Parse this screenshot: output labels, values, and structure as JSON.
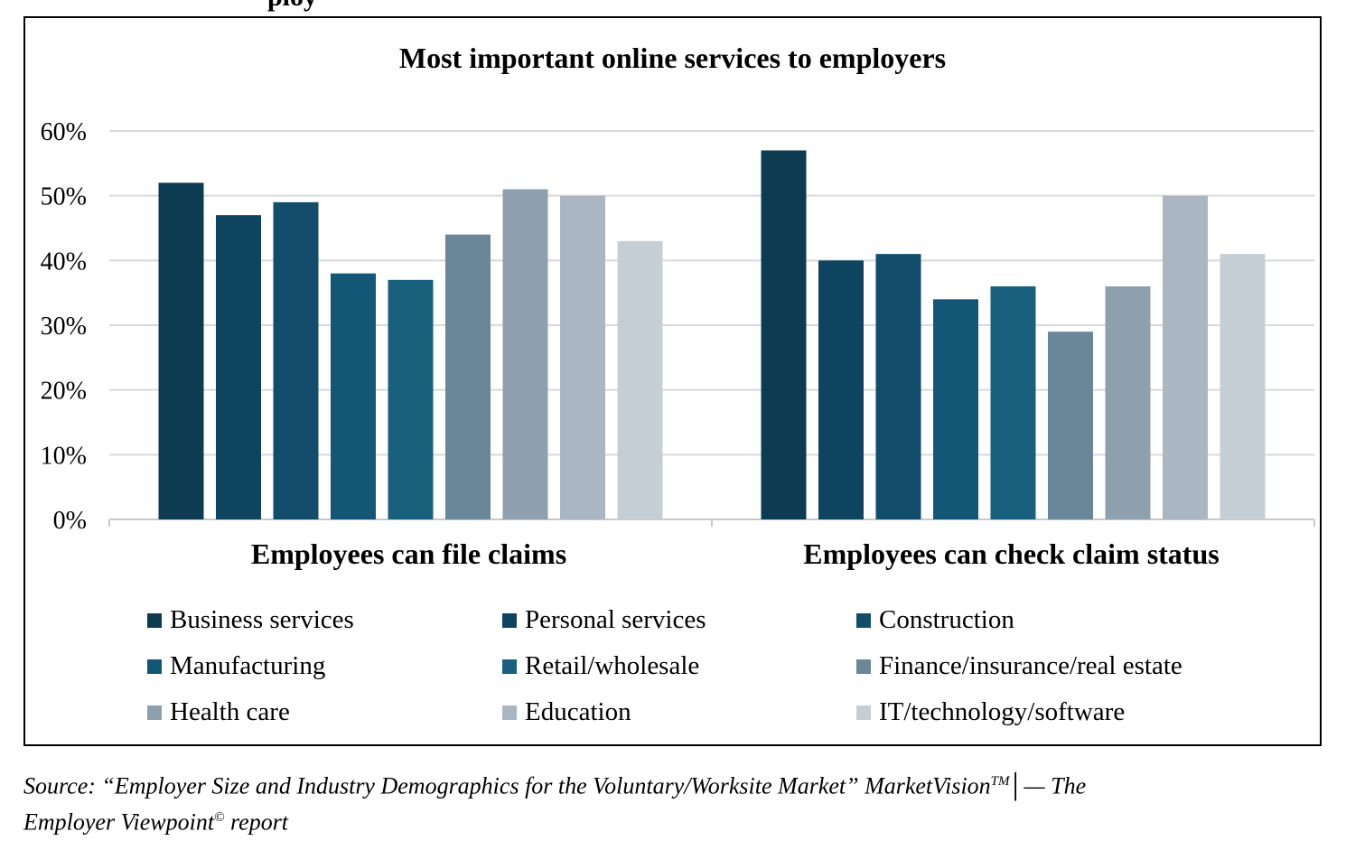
{
  "header_fragment": "ploy",
  "chart_data": {
    "type": "bar",
    "title": "Most important online services to employers",
    "categories": [
      "Employees can file claims",
      "Employees can check claim status"
    ],
    "ylim": [
      0,
      60
    ],
    "yticks": [
      "0%",
      "10%",
      "20%",
      "30%",
      "40%",
      "50%",
      "60%"
    ],
    "grid": true,
    "legend_position": "bottom",
    "series": [
      {
        "name": "Business services",
        "values": [
          52,
          57
        ],
        "color": "#0d3b52"
      },
      {
        "name": "Personal services",
        "values": [
          47,
          40
        ],
        "color": "#0f4461"
      },
      {
        "name": "Construction",
        "values": [
          49,
          41
        ],
        "color": "#124d6c"
      },
      {
        "name": "Manufacturing",
        "values": [
          38,
          34
        ],
        "color": "#145676"
      },
      {
        "name": "Retail/wholesale",
        "values": [
          37,
          36
        ],
        "color": "#19607f"
      },
      {
        "name": "Finance/insurance/real estate",
        "values": [
          44,
          29
        ],
        "color": "#6a8699"
      },
      {
        "name": "Health care",
        "values": [
          51,
          36
        ],
        "color": "#8e9fad"
      },
      {
        "name": "Education",
        "values": [
          50,
          50
        ],
        "color": "#aab7c2"
      },
      {
        "name": "IT/technology/software",
        "values": [
          43,
          41
        ],
        "color": "#c5ced5"
      }
    ]
  },
  "source": {
    "prefix": "Source: “Employer Size and Industry Demographics for the Voluntary/Worksite Market” MarketVision",
    "tm": "TM",
    "middle": "│— The",
    "line2": "Employer Viewpoint",
    "copyright": "©",
    "suffix": " report"
  }
}
